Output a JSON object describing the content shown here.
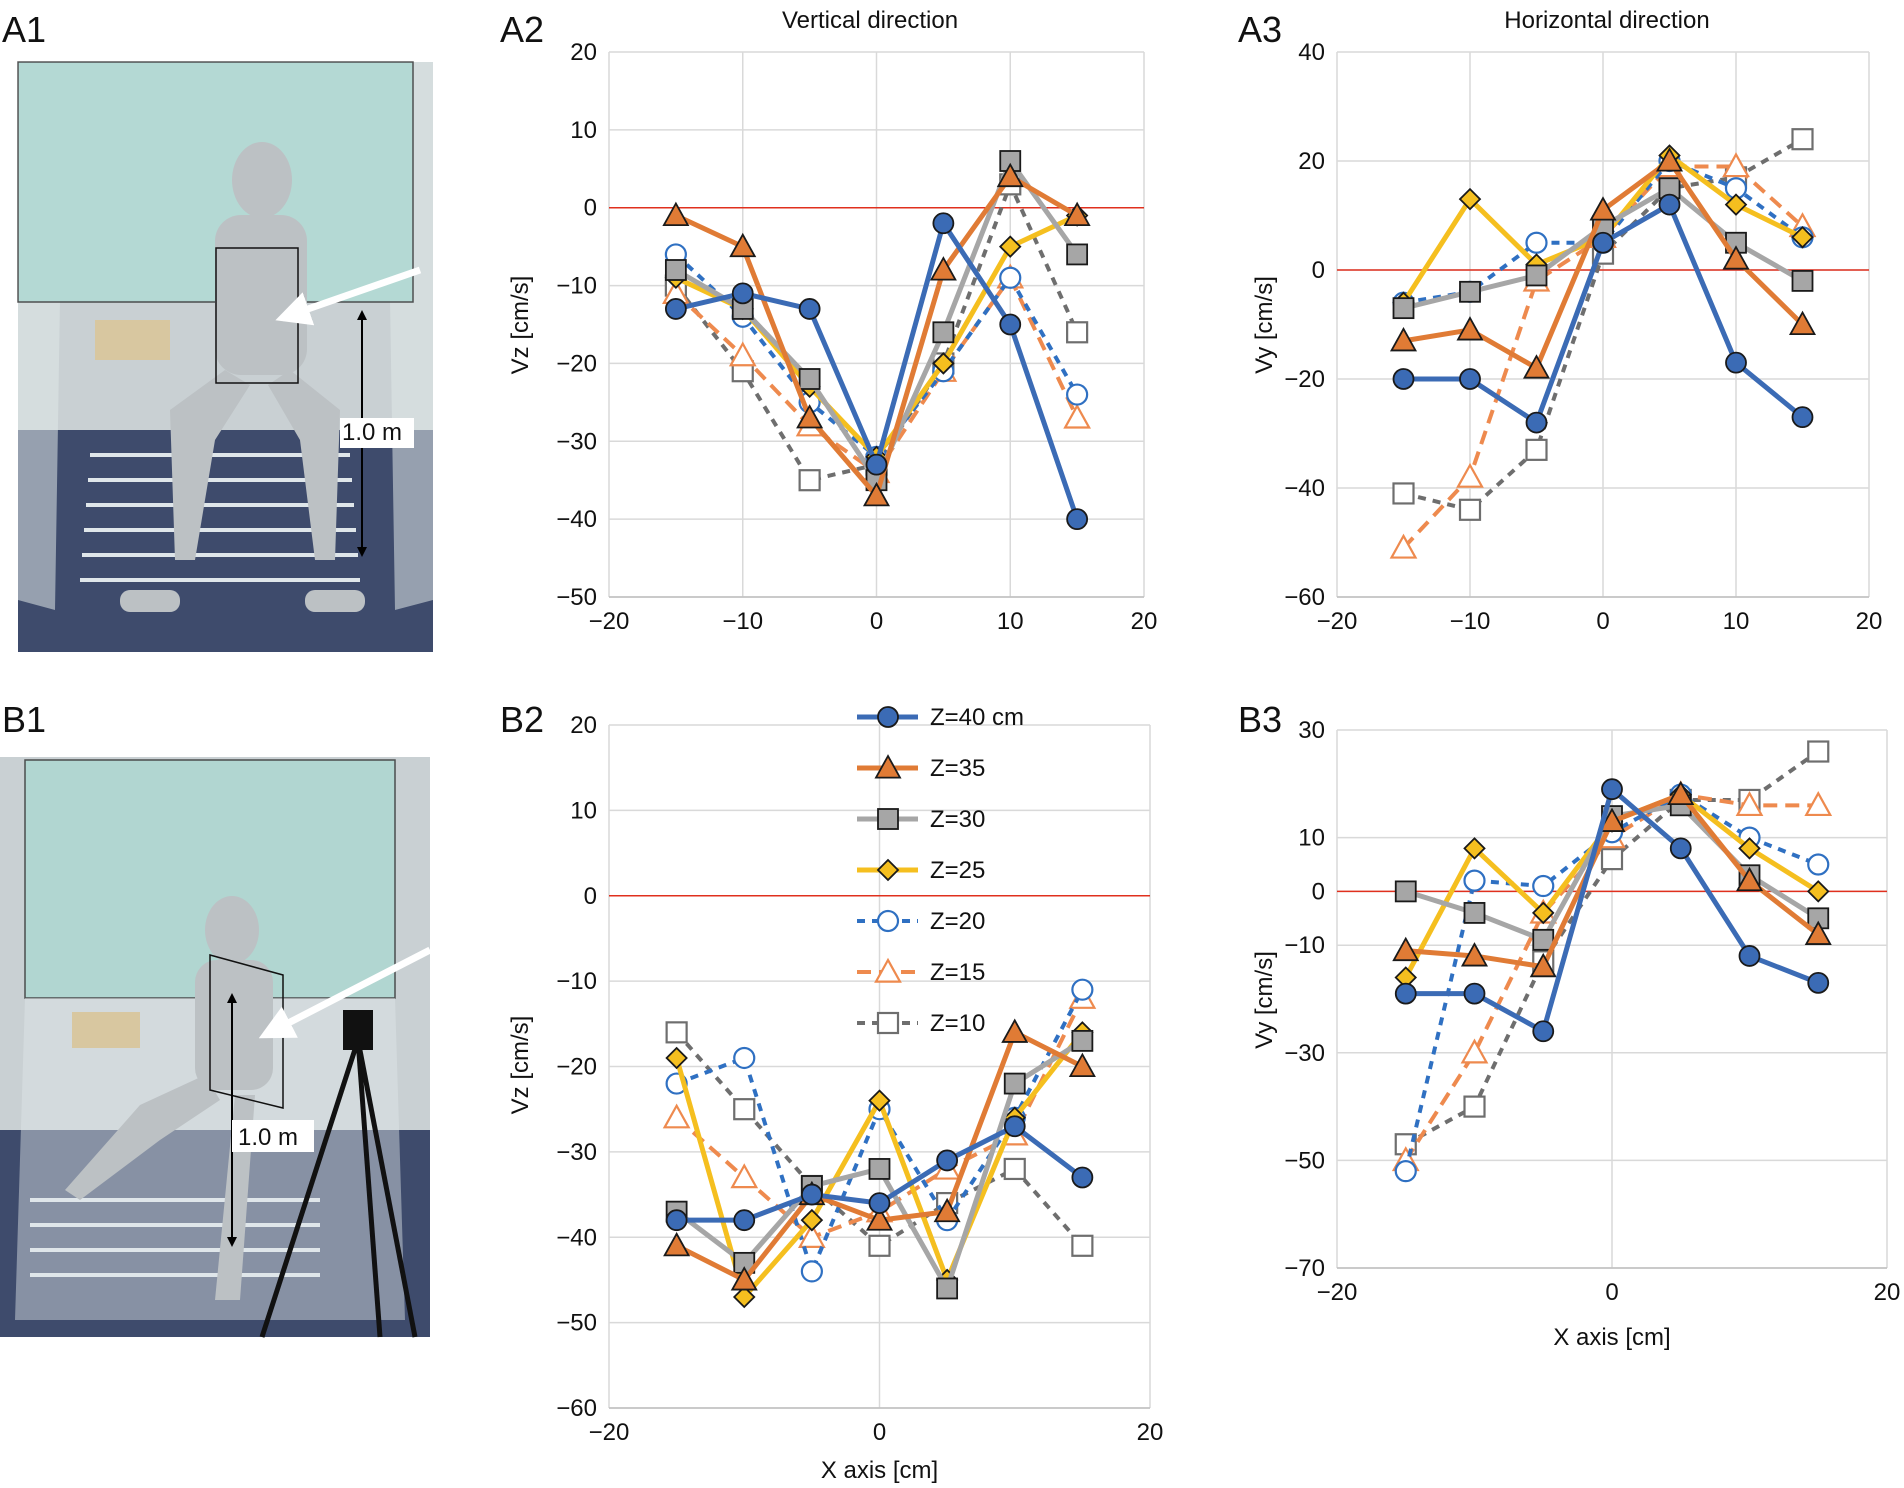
{
  "figure": {
    "panels": {
      "A1": "A1",
      "A2": "A2",
      "A3": "A3",
      "B1": "B1",
      "B2": "B2",
      "B3": "B3"
    },
    "photos": [
      {
        "id": "A1",
        "distance_label": "1.0 m",
        "colors": {
          "curtain": "#b9dcd6",
          "floor": "#3a4a6e",
          "walls": "#cfd6d8"
        }
      },
      {
        "id": "B1",
        "distance_label": "1.0 m",
        "colors": {
          "curtain": "#b9dcd6",
          "floor": "#3a4a6e",
          "walls": "#cfd6d8"
        }
      }
    ],
    "colors": {
      "z40": "#3b6bb5",
      "z35": "#e07b35",
      "z30": "#a6a6a6",
      "z25": "#f5bf1f",
      "z20": "#2f70c2",
      "z15": "#ee8a4e",
      "z10": "#6e6e6e",
      "zero_line": "#e0301e",
      "grid": "#d9d9d9"
    }
  },
  "chart_data": [
    {
      "id": "A2",
      "type": "line",
      "title": "Vertical direction",
      "xlabel": "",
      "ylabel": "Vz [cm/s]",
      "xlim": [
        -20,
        20
      ],
      "ylim": [
        -50,
        20
      ],
      "xticks": [
        -20,
        -10,
        0,
        10,
        20
      ],
      "yticks": [
        -50,
        -40,
        -30,
        -20,
        -10,
        0,
        10,
        20
      ],
      "grid": true,
      "zero_line": 0,
      "x": [
        -15,
        -10,
        -5,
        0,
        5,
        10,
        15
      ],
      "series": [
        {
          "name": "Z=40 cm",
          "values": [
            -13,
            -11,
            -13,
            -33,
            -2,
            -15,
            -40
          ]
        },
        {
          "name": "Z=35",
          "values": [
            -1,
            -5,
            -27,
            -37,
            -8,
            4,
            -1
          ]
        },
        {
          "name": "Z=30",
          "values": [
            -8,
            -13,
            -22,
            -35,
            -16,
            6,
            -6
          ]
        },
        {
          "name": "Z=25",
          "values": [
            -9,
            -13,
            -23,
            -32,
            -20,
            -5,
            -1
          ]
        },
        {
          "name": "Z=20",
          "values": [
            -6,
            -14,
            -25,
            -32,
            -21,
            -9,
            -24
          ]
        },
        {
          "name": "Z=15",
          "values": [
            -11,
            -19,
            -28,
            -34,
            -21,
            -9,
            -27
          ]
        },
        {
          "name": "Z=10",
          "values": [
            -10,
            -21,
            -35,
            -33,
            -20,
            3,
            -16
          ]
        }
      ]
    },
    {
      "id": "A3",
      "type": "line",
      "title": "Horizontal direction",
      "xlabel": "",
      "ylabel": "Vy [cm/s]",
      "xlim": [
        -20,
        20
      ],
      "ylim": [
        -60,
        40
      ],
      "xticks": [
        -20,
        -10,
        0,
        10,
        20
      ],
      "yticks": [
        -60,
        -40,
        -20,
        0,
        20,
        40
      ],
      "grid": true,
      "zero_line": 0,
      "x": [
        -15,
        -10,
        -5,
        0,
        5,
        10,
        15
      ],
      "series": [
        {
          "name": "Z=40 cm",
          "values": [
            -20,
            -20,
            -28,
            5,
            12,
            -17,
            -27
          ]
        },
        {
          "name": "Z=35",
          "values": [
            -13,
            -11,
            -18,
            11,
            20,
            2,
            -10
          ]
        },
        {
          "name": "Z=30",
          "values": [
            -7,
            -4,
            -1,
            8,
            15,
            5,
            -2
          ]
        },
        {
          "name": "Z=25",
          "values": [
            -6,
            13,
            1,
            6,
            21,
            12,
            6
          ]
        },
        {
          "name": "Z=20",
          "values": [
            -6,
            -4,
            5,
            5,
            20,
            15,
            6
          ]
        },
        {
          "name": "Z=15",
          "values": [
            -51,
            -38,
            -2,
            6,
            19,
            19,
            8
          ]
        },
        {
          "name": "Z=10",
          "values": [
            -41,
            -44,
            -33,
            3,
            15,
            17,
            24
          ]
        }
      ]
    },
    {
      "id": "B2",
      "type": "line",
      "title": "",
      "xlabel": "X axis [cm]",
      "ylabel": "Vz [cm/s]",
      "xlim": [
        -20,
        20
      ],
      "ylim": [
        -60,
        20
      ],
      "xticks": [
        -20,
        0,
        20
      ],
      "yticks": [
        -60,
        -50,
        -40,
        -30,
        -20,
        -10,
        0,
        10,
        20
      ],
      "grid": true,
      "zero_line": 0,
      "legend": "top-center",
      "x": [
        -15,
        -10,
        -5,
        0,
        5,
        10,
        15
      ],
      "series": [
        {
          "name": "Z=40 cm",
          "values": [
            -38,
            -38,
            -35,
            -36,
            -31,
            -27,
            -33
          ]
        },
        {
          "name": "Z=35",
          "values": [
            -41,
            -45,
            -35,
            -38,
            -37,
            -16,
            -20
          ]
        },
        {
          "name": "Z=30",
          "values": [
            -37,
            -43,
            -34,
            -32,
            -46,
            -22,
            -17
          ]
        },
        {
          "name": "Z=25",
          "values": [
            -19,
            -47,
            -38,
            -24,
            -45,
            -26,
            -16
          ]
        },
        {
          "name": "Z=20",
          "values": [
            -22,
            -19,
            -44,
            -25,
            -38,
            -26,
            -11
          ]
        },
        {
          "name": "Z=15",
          "values": [
            -26,
            -33,
            -40,
            -37,
            -32,
            -28,
            -12
          ]
        },
        {
          "name": "Z=10",
          "values": [
            -16,
            -25,
            -34,
            -41,
            -36,
            -32,
            -41
          ]
        }
      ]
    },
    {
      "id": "B3",
      "type": "line",
      "title": "",
      "xlabel": "X axis [cm]",
      "ylabel": "Vy [cm/s]",
      "xlim": [
        -20,
        20
      ],
      "ylim": [
        -70,
        30
      ],
      "xticks": [
        -20,
        0,
        20
      ],
      "yticks": [
        -70,
        -50,
        -30,
        -10,
        0,
        10,
        30
      ],
      "grid": true,
      "zero_line": 0,
      "x": [
        -15,
        -10,
        -5,
        0,
        5,
        10,
        15
      ],
      "series": [
        {
          "name": "Z=40 cm",
          "values": [
            -19,
            -19,
            -26,
            19,
            8,
            -12,
            -17
          ]
        },
        {
          "name": "Z=35",
          "values": [
            -11,
            -12,
            -14,
            13,
            18,
            2,
            -8
          ]
        },
        {
          "name": "Z=30",
          "values": [
            0,
            -4,
            -9,
            14,
            16,
            3,
            -5
          ]
        },
        {
          "name": "Z=25",
          "values": [
            -16,
            8,
            -4,
            13,
            18,
            8,
            0
          ]
        },
        {
          "name": "Z=20",
          "values": [
            -52,
            2,
            1,
            11,
            18,
            10,
            5
          ]
        },
        {
          "name": "Z=15",
          "values": [
            -50,
            -30,
            -4,
            10,
            18,
            16,
            16
          ]
        },
        {
          "name": "Z=10",
          "values": [
            -47,
            -40,
            -13,
            6,
            17,
            17,
            26
          ]
        }
      ]
    }
  ]
}
